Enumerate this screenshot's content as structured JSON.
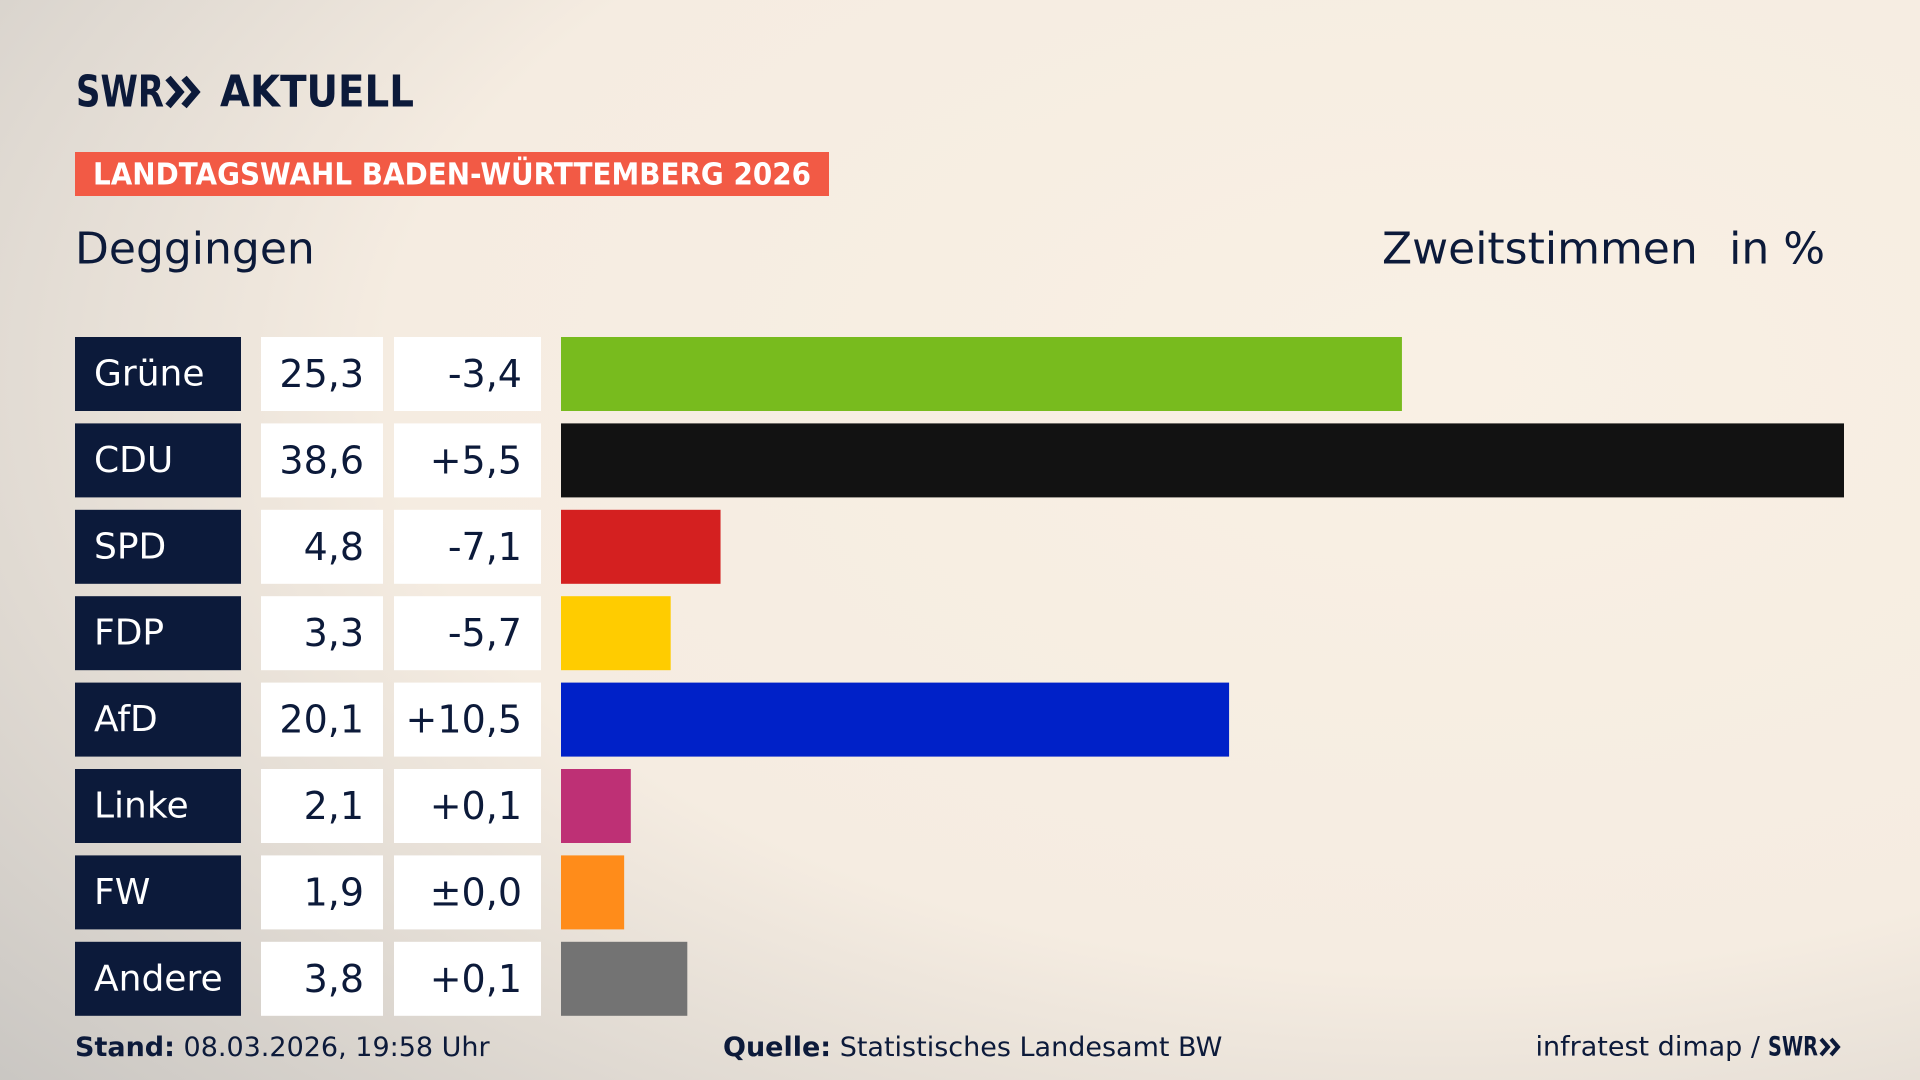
{
  "header": {
    "logo": "SWR",
    "logo_suffix": "AKTUELL",
    "tag": "LANDTAGSWAHL BADEN-WÜRTTEMBERG 2026"
  },
  "chart_data": {
    "type": "bar",
    "orientation": "horizontal",
    "title": "Deggingen",
    "subtitle": "Zweitstimmen",
    "unit": "in %",
    "categories": [
      "Grüne",
      "CDU",
      "SPD",
      "FDP",
      "AfD",
      "Linke",
      "FW",
      "Andere"
    ],
    "values": [
      25.3,
      38.6,
      4.8,
      3.3,
      20.1,
      2.1,
      1.9,
      3.8
    ],
    "value_labels": [
      "25,3",
      "38,6",
      "4,8",
      "3,3",
      "20,1",
      "2,1",
      "1,9",
      "3,8"
    ],
    "changes": [
      -3.4,
      5.5,
      -7.1,
      -5.7,
      10.5,
      0.1,
      0,
      0.1
    ],
    "change_labels": [
      "-3,4",
      "+5,5",
      "-7,1",
      "-5,7",
      "+10,5",
      "+0,1",
      "±0,0",
      "+0,1"
    ],
    "colors": [
      "#78bb1e",
      "#121212",
      "#d42020",
      "#ffcc00",
      "#0021c8",
      "#be3075",
      "#ff8c1a",
      "#737373"
    ]
  },
  "footer": {
    "stand_label": "Stand:",
    "stand": "08.03.2026, 19:58 Uhr",
    "source_label": "Quelle:",
    "source": "Statistisches Landesamt BW",
    "credit": "infratest dimap /",
    "credit_logo": "SWR"
  }
}
